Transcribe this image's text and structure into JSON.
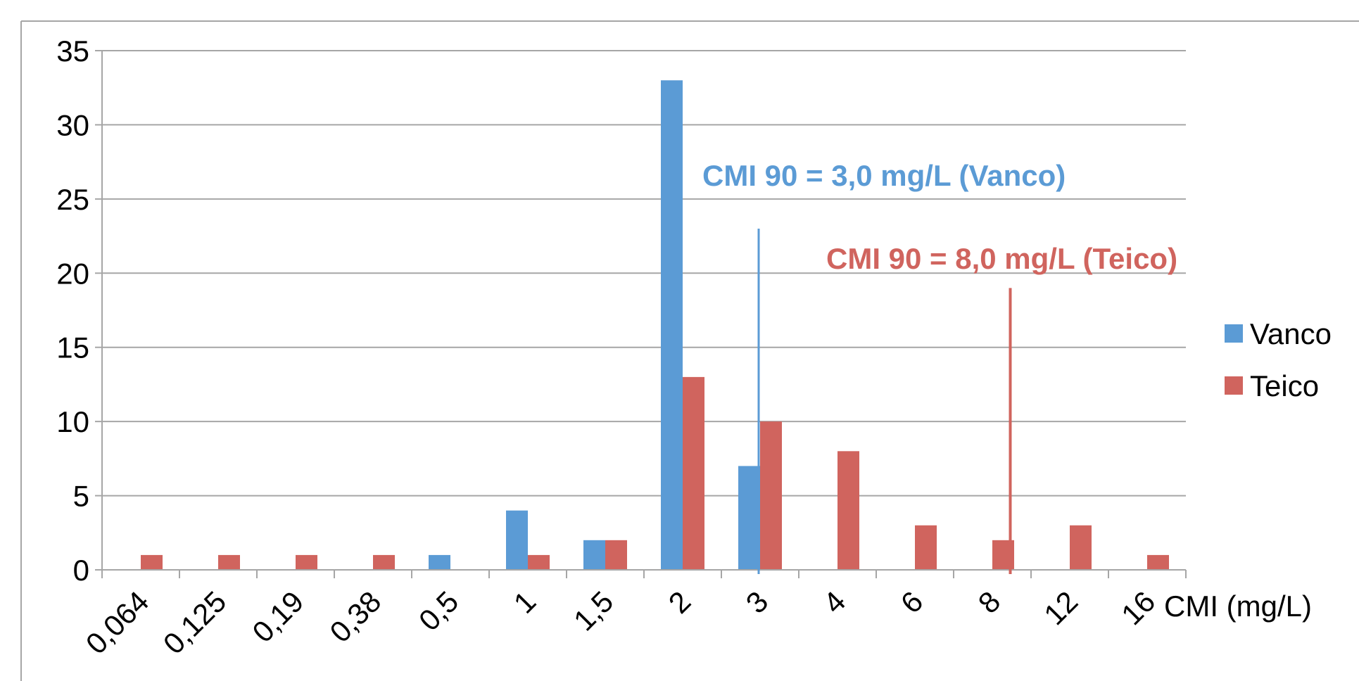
{
  "chart_data": {
    "type": "bar",
    "categories": [
      "0,064",
      "0,125",
      "0,19",
      "0,38",
      "0,5",
      "1",
      "1,5",
      "2",
      "3",
      "4",
      "6",
      "8",
      "12",
      "16"
    ],
    "series": [
      {
        "name": "Vanco",
        "color": "#5b9bd5",
        "values": [
          0,
          0,
          0,
          0,
          1,
          4,
          2,
          33,
          7,
          0,
          0,
          0,
          0,
          0
        ]
      },
      {
        "name": "Teico",
        "color": "#d0645e",
        "values": [
          1,
          1,
          1,
          1,
          0,
          1,
          2,
          13,
          10,
          8,
          3,
          2,
          3,
          1
        ]
      }
    ],
    "xlabel": "CMI (mg/L)",
    "ylabel": "",
    "ylim": [
      0,
      35
    ],
    "yticks": [
      "0",
      "5",
      "10",
      "15",
      "20",
      "25",
      "30",
      "35"
    ],
    "grid": true,
    "legend": {
      "placement": "right"
    },
    "annotations": [
      {
        "text": "CMI 90 = 3,0 mg/L (Vanco)",
        "series": "Vanco",
        "category_index": 8.0,
        "top_value": 23,
        "color": "#5b9bd5"
      },
      {
        "text": "CMI 90 = 8,0 mg/L (Teico)",
        "series": "Teico",
        "category_index": 11.25,
        "top_value": 19,
        "color": "#d0645e"
      }
    ]
  }
}
